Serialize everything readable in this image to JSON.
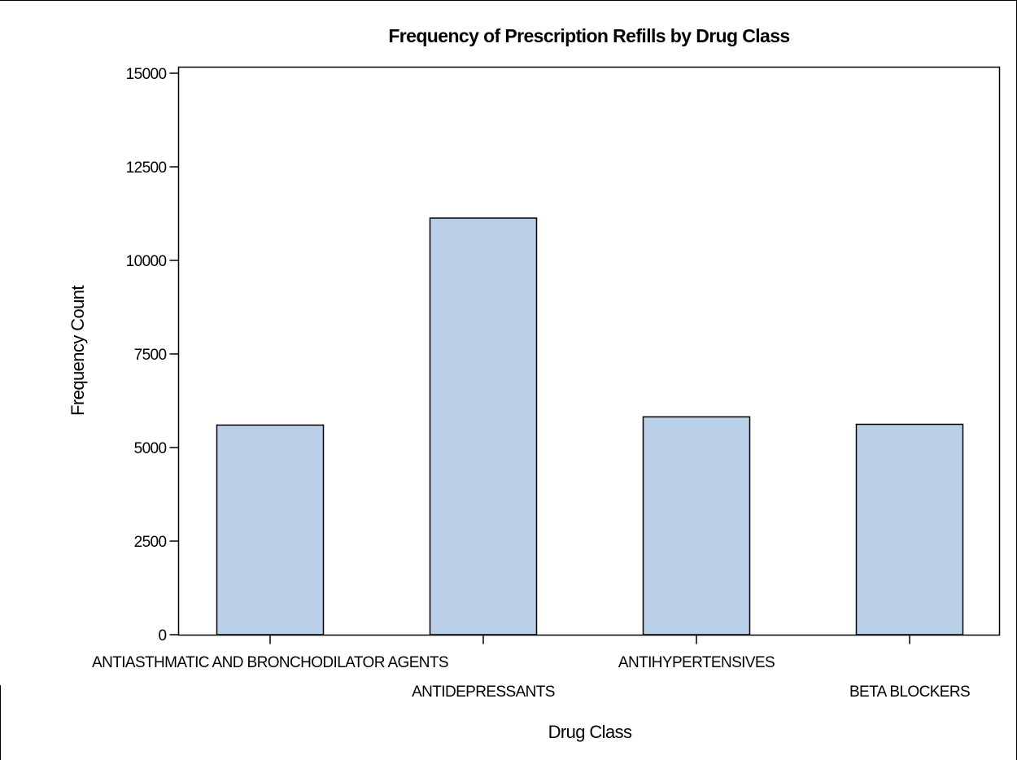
{
  "chart_data": {
    "type": "bar",
    "title": "Frequency of Prescription Refills by Drug Class",
    "xlabel": "Drug Class",
    "ylabel": "Frequency Count",
    "categories": [
      "ANTIASTHMATIC AND BRONCHODILATOR AGENTS",
      "ANTIDEPRESSANTS",
      "ANTIHYPERTENSIVES",
      "BETA BLOCKERS"
    ],
    "values": [
      5600,
      11130,
      5820,
      5620
    ],
    "ylim": [
      0,
      15000
    ],
    "yticks": [
      0,
      2500,
      5000,
      7500,
      10000,
      12500,
      15000
    ],
    "ytick_labels": [
      "0",
      "2500",
      "5000",
      "7500",
      "10000",
      "12500",
      "15000"
    ],
    "grid": false,
    "legend": "none",
    "colors": {
      "bar_fill": "#b9cfe7",
      "bar_stroke": "#000000",
      "axis": "#000000"
    }
  }
}
